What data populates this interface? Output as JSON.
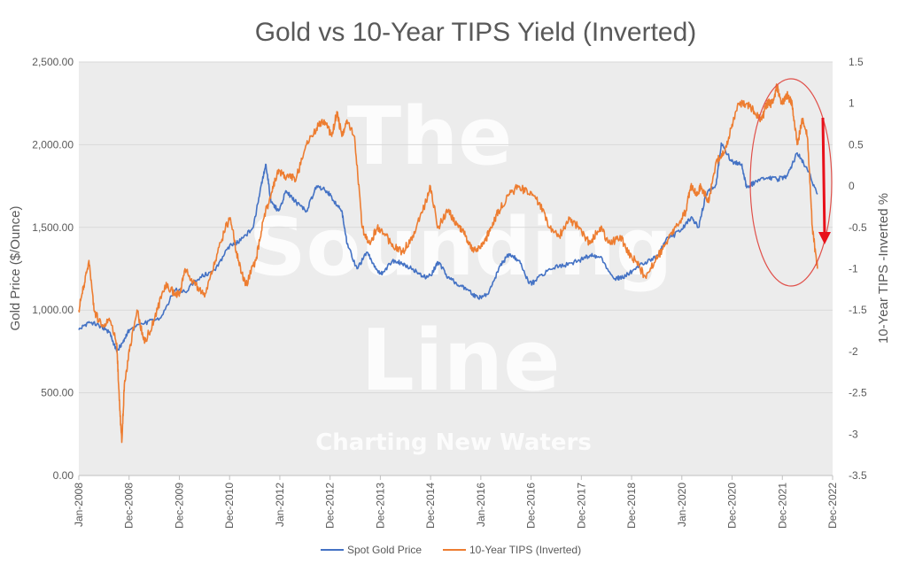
{
  "chart_data": {
    "type": "line",
    "title": "Gold vs 10-Year TIPS Yield (Inverted)",
    "ylabel": "Gold Price ($/Ounce)",
    "y2label": "10-Year TIPS -Inverted %",
    "ylim": [
      0,
      2500
    ],
    "y2lim": [
      -3.5,
      1.5
    ],
    "y_ticks": [
      "0.00",
      "500.00",
      "1,000.00",
      "1,500.00",
      "2,000.00",
      "2,500.00"
    ],
    "y2_ticks": [
      "-3.5",
      "-3",
      "-2.5",
      "-2",
      "-1.5",
      "-1",
      "-0.5",
      "0",
      "0.5",
      "1",
      "1.5"
    ],
    "x_ticks": [
      "Jan-2008",
      "Dec-2008",
      "Dec-2009",
      "Dec-2010",
      "Jan-2012",
      "Dec-2012",
      "Dec-2013",
      "Dec-2014",
      "Jan-2016",
      "Dec-2016",
      "Dec-2017",
      "Dec-2018",
      "Jan-2020",
      "Dec-2020",
      "Dec-2021",
      "Dec-2022"
    ],
    "grid": true,
    "legend_position": "bottom",
    "series": [
      {
        "name": "Spot Gold Price",
        "axis": "left",
        "color": "#4472C4",
        "x": [
          2008.0,
          2008.2,
          2008.45,
          2008.6,
          2008.75,
          2008.85,
          2009.0,
          2009.3,
          2009.6,
          2009.9,
          2010.1,
          2010.4,
          2010.7,
          2010.95,
          2011.2,
          2011.45,
          2011.6,
          2011.7,
          2011.8,
          2011.95,
          2012.1,
          2012.3,
          2012.5,
          2012.7,
          2012.9,
          2013.0,
          2013.2,
          2013.3,
          2013.5,
          2013.7,
          2013.9,
          2014.0,
          2014.2,
          2014.4,
          2014.6,
          2014.8,
          2014.95,
          2015.1,
          2015.3,
          2015.5,
          2015.7,
          2015.9,
          2016.1,
          2016.3,
          2016.5,
          2016.7,
          2016.9,
          2017.0,
          2017.3,
          2017.6,
          2017.9,
          2018.1,
          2018.3,
          2018.6,
          2018.75,
          2018.95,
          2019.2,
          2019.45,
          2019.6,
          2019.9,
          2020.1,
          2020.25,
          2020.4,
          2020.6,
          2020.7,
          2020.9,
          2021.1,
          2021.2,
          2021.4,
          2021.6,
          2021.8,
          2022.0,
          2022.2,
          2022.4,
          2022.6
        ],
        "values": [
          880,
          930,
          900,
          870,
          750,
          800,
          880,
          920,
          950,
          1120,
          1110,
          1200,
          1240,
          1380,
          1420,
          1500,
          1750,
          1880,
          1650,
          1600,
          1720,
          1650,
          1600,
          1750,
          1720,
          1680,
          1600,
          1400,
          1250,
          1350,
          1240,
          1220,
          1300,
          1280,
          1250,
          1200,
          1210,
          1290,
          1200,
          1150,
          1120,
          1070,
          1100,
          1250,
          1340,
          1300,
          1160,
          1170,
          1250,
          1270,
          1300,
          1330,
          1320,
          1190,
          1200,
          1240,
          1290,
          1330,
          1420,
          1480,
          1560,
          1500,
          1700,
          1760,
          2010,
          1900,
          1880,
          1740,
          1780,
          1800,
          1790,
          1810,
          1950,
          1850,
          1700
        ]
      },
      {
        "name": "10-Year TIPS (Inverted)",
        "axis": "right",
        "color": "#ED7D31",
        "x": [
          2008.0,
          2008.1,
          2008.2,
          2008.3,
          2008.45,
          2008.6,
          2008.75,
          2008.8,
          2008.85,
          2008.9,
          2009.0,
          2009.15,
          2009.3,
          2009.5,
          2009.7,
          2009.9,
          2010.0,
          2010.1,
          2010.3,
          2010.5,
          2010.7,
          2010.9,
          2011.0,
          2011.15,
          2011.3,
          2011.5,
          2011.65,
          2011.8,
          2011.95,
          2012.1,
          2012.3,
          2012.5,
          2012.7,
          2012.85,
          2013.0,
          2013.1,
          2013.2,
          2013.3,
          2013.45,
          2013.6,
          2013.75,
          2013.9,
          2014.05,
          2014.2,
          2014.4,
          2014.6,
          2014.8,
          2014.95,
          2015.1,
          2015.3,
          2015.5,
          2015.65,
          2015.8,
          2016.0,
          2016.15,
          2016.3,
          2016.5,
          2016.7,
          2016.9,
          2017.1,
          2017.3,
          2017.5,
          2017.7,
          2017.9,
          2018.1,
          2018.3,
          2018.5,
          2018.7,
          2018.85,
          2019.0,
          2019.2,
          2019.4,
          2019.6,
          2019.8,
          2020.0,
          2020.1,
          2020.2,
          2020.3,
          2020.45,
          2020.6,
          2020.75,
          2020.9,
          2021.05,
          2021.2,
          2021.35,
          2021.5,
          2021.6,
          2021.7,
          2021.8,
          2021.9,
          2022.0,
          2022.1,
          2022.2,
          2022.3,
          2022.4,
          2022.5,
          2022.6
        ],
        "values": [
          -1.5,
          -1.2,
          -0.9,
          -1.5,
          -1.7,
          -1.6,
          -1.9,
          -2.6,
          -3.1,
          -2.4,
          -2.0,
          -1.5,
          -1.9,
          -1.6,
          -1.2,
          -1.3,
          -1.3,
          -1.0,
          -1.2,
          -1.3,
          -0.9,
          -0.5,
          -0.4,
          -0.9,
          -1.2,
          -0.9,
          -0.4,
          -0.1,
          0.2,
          0.1,
          0.1,
          0.5,
          0.7,
          0.8,
          0.6,
          0.9,
          0.6,
          0.8,
          0.6,
          -0.5,
          -0.7,
          -0.5,
          -0.6,
          -0.7,
          -0.8,
          -0.6,
          -0.3,
          0.0,
          -0.5,
          -0.3,
          -0.5,
          -0.6,
          -0.8,
          -0.7,
          -0.5,
          -0.3,
          -0.1,
          0.0,
          -0.1,
          -0.2,
          -0.5,
          -0.6,
          -0.4,
          -0.5,
          -0.7,
          -0.5,
          -0.7,
          -0.6,
          -0.8,
          -0.9,
          -1.1,
          -0.9,
          -0.7,
          -0.5,
          -0.3,
          0.0,
          -0.1,
          0.0,
          -0.2,
          0.3,
          0.4,
          0.7,
          1.0,
          1.0,
          0.9,
          0.8,
          1.0,
          1.0,
          1.2,
          1.0,
          1.1,
          1.0,
          0.5,
          0.8,
          0.6,
          -0.5,
          -1.0
        ]
      }
    ]
  },
  "legend": {
    "gold_label": "Spot Gold Price",
    "tips_label": "10-Year TIPS (Inverted)"
  },
  "watermark": {
    "line1": "The",
    "line2": "Sounding",
    "line3": "Line",
    "tagline": "Charting New Waters"
  },
  "colors": {
    "gold_series": "#4472C4",
    "tips_series": "#ED7D31",
    "annotation": "#FF0000",
    "background": "#ECECEC"
  }
}
